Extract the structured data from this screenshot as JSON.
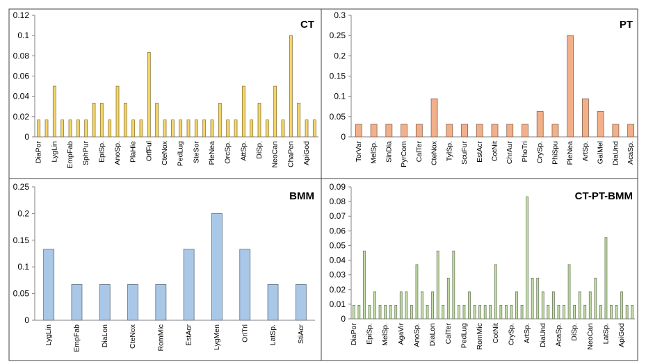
{
  "chart_data": [
    {
      "type": "bar",
      "title": "CT",
      "ylim": [
        0,
        0.12
      ],
      "yticks": [
        "0",
        "0.02",
        "0.04",
        "0.06",
        "0.08",
        "0.1",
        "0.12"
      ],
      "bar_color": "#f5d66a",
      "grid": false,
      "categories": [
        "DiaPor",
        "",
        "LygLin",
        "",
        "EmpFab",
        "",
        "SphPur",
        "",
        "EpiSp.",
        "",
        "AnoSp.",
        "",
        "PlaHie",
        "",
        "OrfFul",
        "",
        "CteNox",
        "",
        "PedLug",
        "",
        "SteSor",
        "",
        "PleNea",
        "",
        "OrcSp.",
        "",
        "AttSp.",
        "",
        "DiSp.",
        "",
        "NeoCan",
        "",
        "ChaPen",
        "",
        "ApiGod",
        ""
      ],
      "values": [
        0.0167,
        0.0167,
        0.05,
        0.0167,
        0.0167,
        0.0167,
        0.0167,
        0.0333,
        0.0333,
        0.0167,
        0.05,
        0.0333,
        0.0167,
        0.0167,
        0.0833,
        0.0333,
        0.0167,
        0.0167,
        0.0167,
        0.0167,
        0.0167,
        0.0167,
        0.0167,
        0.0333,
        0.0167,
        0.0167,
        0.05,
        0.0167,
        0.0333,
        0.0167,
        0.05,
        0.0167,
        0.1,
        0.0333,
        0.0167,
        0.0167
      ]
    },
    {
      "type": "bar",
      "title": "PT",
      "ylim": [
        0,
        0.3
      ],
      "yticks": [
        "0",
        "0.05",
        "0.1",
        "0.15",
        "0.2",
        "0.25",
        "0.3"
      ],
      "bar_color": "#f2b08a",
      "grid": false,
      "categories": [
        "TorVar",
        "MelSp.",
        "SinDia",
        "PyrCom",
        "CalTer",
        "CteNox",
        "TylSp.",
        "ScuFur",
        "EstAcr",
        "CotNit",
        "ChrAur",
        "PhoTri",
        "CrySp.",
        "PhiSpu",
        "PleNea",
        "ArtSp.",
        "GalMel",
        "DiaUnd",
        "AcaSp."
      ],
      "values": [
        0.031,
        0.031,
        0.031,
        0.031,
        0.031,
        0.094,
        0.031,
        0.031,
        0.031,
        0.031,
        0.031,
        0.031,
        0.0625,
        0.031,
        0.25,
        0.094,
        0.0625,
        0.031,
        0.031
      ]
    },
    {
      "type": "bar",
      "title": "BMM",
      "ylim": [
        0,
        0.25
      ],
      "yticks": [
        "0",
        "0.05",
        "0.1",
        "0.15",
        "0.2",
        "0.25"
      ],
      "bar_color": "#a9c8e8",
      "grid": false,
      "categories": [
        "LygLin",
        "EmpFab",
        "DiaLon",
        "CteNox",
        "RomMic",
        "EstAcr",
        "LygMen",
        "OriTri",
        "LatSp.",
        "StiAcr"
      ],
      "values": [
        0.133,
        0.067,
        0.067,
        0.067,
        0.067,
        0.133,
        0.2,
        0.133,
        0.067,
        0.067
      ]
    },
    {
      "type": "bar",
      "title": "CT-PT-BMM",
      "ylim": [
        0,
        0.09
      ],
      "yticks": [
        "0",
        "0.01",
        "0.02",
        "0.03",
        "0.04",
        "0.05",
        "0.06",
        "0.07",
        "0.08",
        "0.09"
      ],
      "bar_color": "#c5dfa8",
      "grid": false,
      "categories": [
        "DiaPor",
        "",
        "",
        "EpiSp.",
        "",
        "",
        "MelSp.",
        "",
        "",
        "AgaVir",
        "",
        "",
        "AnoSp.",
        "",
        "",
        "DiaLon",
        "",
        "",
        "CalTer",
        "",
        "",
        "PedLug",
        "",
        "",
        "RomMic",
        "",
        "",
        "CotNit",
        "",
        "",
        "CrySp.",
        "",
        "",
        "ArtSp.",
        "",
        "",
        "DiaUnd",
        "",
        "",
        "AcaSp.",
        "",
        "",
        "DiSp.",
        "",
        "",
        "NeoCan",
        "",
        "",
        "LatSp.",
        "",
        "",
        "ApiGod",
        "",
        ""
      ],
      "values": [
        0.0093,
        0.0093,
        0.0463,
        0.0093,
        0.0185,
        0.0093,
        0.0093,
        0.0093,
        0.0093,
        0.0185,
        0.0185,
        0.0093,
        0.037,
        0.0185,
        0.0093,
        0.0185,
        0.0463,
        0.0093,
        0.0278,
        0.0463,
        0.0093,
        0.0093,
        0.0185,
        0.0093,
        0.0093,
        0.0093,
        0.0093,
        0.037,
        0.0093,
        0.0093,
        0.0093,
        0.0185,
        0.0093,
        0.0833,
        0.0278,
        0.0278,
        0.0185,
        0.0093,
        0.0185,
        0.0093,
        0.0093,
        0.037,
        0.0093,
        0.0185,
        0.0093,
        0.0185,
        0.0278,
        0.0093,
        0.0556,
        0.0093,
        0.0093,
        0.0185,
        0.0093,
        0.0093
      ]
    }
  ]
}
